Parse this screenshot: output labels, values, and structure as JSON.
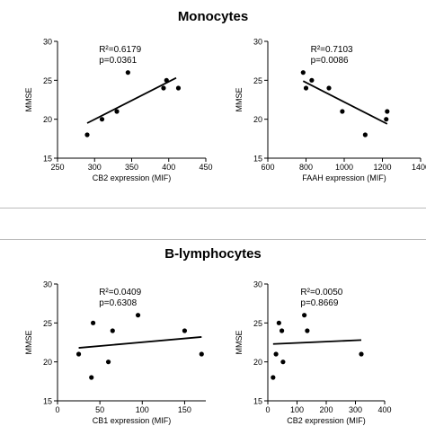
{
  "sections": {
    "top": "Monocytes",
    "bottom": "B-lymphocytes"
  },
  "chart_data": [
    {
      "type": "scatter",
      "section": "Monocytes",
      "xlabel": "CB2 expression (MIF)",
      "ylabel": "MMSE",
      "xlim": [
        250,
        450
      ],
      "ylim": [
        15,
        30
      ],
      "xticks": [
        250,
        300,
        350,
        400,
        450
      ],
      "yticks": [
        15,
        20,
        25,
        30
      ],
      "points": [
        [
          290,
          18
        ],
        [
          310,
          20
        ],
        [
          330,
          21
        ],
        [
          345,
          26
        ],
        [
          393,
          24
        ],
        [
          397,
          25
        ],
        [
          413,
          24
        ]
      ],
      "fit_line": [
        [
          290,
          19.5
        ],
        [
          410,
          25.3
        ]
      ],
      "stats": {
        "r2": "R²=0.6179",
        "p": "p=0.0361"
      }
    },
    {
      "type": "scatter",
      "section": "Monocytes",
      "xlabel": "FAAH expression (MIF)",
      "ylabel": "MMSE",
      "xlim": [
        600,
        1400
      ],
      "ylim": [
        15,
        30
      ],
      "xticks": [
        600,
        800,
        1000,
        1200,
        1400
      ],
      "yticks": [
        15,
        20,
        25,
        30
      ],
      "points": [
        [
          785,
          26
        ],
        [
          800,
          24
        ],
        [
          830,
          25
        ],
        [
          920,
          24
        ],
        [
          990,
          21
        ],
        [
          1110,
          18
        ],
        [
          1220,
          20
        ],
        [
          1225,
          21
        ]
      ],
      "fit_line": [
        [
          785,
          24.9
        ],
        [
          1225,
          19.4
        ]
      ],
      "stats": {
        "r2": "R²=0.7103",
        "p": "p=0.0086"
      }
    },
    {
      "type": "scatter",
      "section": "B-lymphocytes",
      "xlabel": "CB1 expression (MIF)",
      "ylabel": "MMSE",
      "xlim": [
        0,
        175
      ],
      "ylim": [
        15,
        30
      ],
      "xticks": [
        0,
        50,
        100,
        150
      ],
      "yticks": [
        15,
        20,
        25,
        30
      ],
      "points": [
        [
          25,
          21
        ],
        [
          40,
          18
        ],
        [
          42,
          25
        ],
        [
          60,
          20
        ],
        [
          65,
          24
        ],
        [
          95,
          26
        ],
        [
          150,
          24
        ],
        [
          170,
          21
        ]
      ],
      "fit_line": [
        [
          25,
          21.8
        ],
        [
          170,
          23.2
        ]
      ],
      "stats": {
        "r2": "R²=0.0409",
        "p": "p=0.6308"
      }
    },
    {
      "type": "scatter",
      "section": "B-lymphocytes",
      "xlabel": "CB2 expression (MIF)",
      "ylabel": "MMSE",
      "xlim": [
        0,
        400
      ],
      "ylim": [
        15,
        30
      ],
      "xticks": [
        0,
        100,
        200,
        300,
        400
      ],
      "yticks": [
        15,
        20,
        25,
        30
      ],
      "points": [
        [
          18,
          18
        ],
        [
          28,
          21
        ],
        [
          38,
          25
        ],
        [
          48,
          24
        ],
        [
          52,
          20
        ],
        [
          125,
          26
        ],
        [
          135,
          24
        ],
        [
          320,
          21
        ]
      ],
      "fit_line": [
        [
          18,
          22.3
        ],
        [
          320,
          22.8
        ]
      ],
      "stats": {
        "r2": "R²=0.0050",
        "p": "p=0.8669"
      }
    }
  ]
}
